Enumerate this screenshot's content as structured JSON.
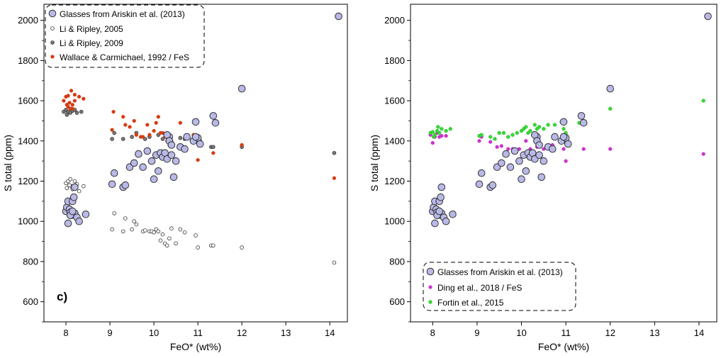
{
  "colors": {
    "ariskin_fill": "#b9b9e8",
    "li2005_fill": "#ffffff",
    "li2009_fill": "#7a7a7a",
    "wallace_fill": "#d63b12",
    "ding_fill": "#cc33cc",
    "fortin_fill": "#33dd33"
  },
  "chart_data": [
    {
      "type": "scatter",
      "panel_label": "c)",
      "xlabel": "FeO* (wt%)",
      "ylabel": "S total (ppm)",
      "xlim": [
        7.5,
        14.4
      ],
      "ylim": [
        500,
        2080
      ],
      "xticks": [
        8,
        9,
        10,
        11,
        12,
        13,
        14
      ],
      "yticks": [
        600,
        800,
        1000,
        1200,
        1400,
        1600,
        1800,
        2000
      ],
      "legend_position": "top-left",
      "series": [
        {
          "name": "Glasses from Ariskin et al. (2013)",
          "marker": "large-circle",
          "x": [
            8.0,
            8.02,
            8.05,
            8.08,
            8.1,
            8.12,
            8.15,
            8.18,
            8.2,
            8.25,
            8.3,
            8.45,
            8.05,
            8.1,
            8.15,
            8.2,
            9.05,
            9.1,
            9.3,
            9.35,
            9.45,
            9.55,
            9.65,
            9.75,
            9.85,
            9.95,
            10.0,
            10.05,
            10.1,
            10.15,
            10.2,
            10.25,
            10.3,
            10.35,
            10.4,
            10.45,
            10.5,
            10.3,
            10.35,
            10.4,
            10.6,
            10.7,
            10.75,
            10.9,
            10.95,
            11.0,
            11.05,
            10.95,
            11.35,
            11.4,
            12.0,
            14.2
          ],
          "y": [
            1050,
            1070,
            1100,
            1060,
            1045,
            1030,
            1100,
            1120,
            1040,
            1020,
            1000,
            1035,
            990,
            1030,
            1050,
            1170,
            1185,
            1240,
            1170,
            1180,
            1270,
            1290,
            1335,
            1270,
            1350,
            1300,
            1210,
            1330,
            1250,
            1340,
            1320,
            1340,
            1310,
            1420,
            1330,
            1220,
            1300,
            1430,
            1400,
            1380,
            1370,
            1360,
            1420,
            1400,
            1495,
            1415,
            1385,
            1420,
            1525,
            1490,
            1660,
            2020
          ]
        },
        {
          "name": "Li & Ripley, 2005",
          "marker": "small-open-circle",
          "x": [
            8.0,
            8.05,
            8.1,
            8.12,
            8.15,
            8.2,
            8.25,
            8.3,
            8.4,
            8.02,
            8.08,
            9.05,
            9.1,
            9.3,
            9.35,
            9.5,
            9.55,
            9.6,
            9.75,
            9.8,
            9.9,
            9.95,
            10.0,
            10.05,
            10.1,
            10.15,
            10.2,
            10.25,
            10.3,
            10.35,
            10.4,
            10.5,
            10.6,
            10.7,
            10.95,
            11.0,
            11.3,
            11.35,
            12.0,
            14.1
          ],
          "y": [
            1190,
            1200,
            1210,
            1175,
            1160,
            1200,
            1185,
            1150,
            1175,
            1165,
            1180,
            960,
            1040,
            950,
            1015,
            960,
            1000,
            985,
            950,
            955,
            950,
            950,
            945,
            960,
            950,
            905,
            935,
            890,
            880,
            915,
            965,
            890,
            960,
            945,
            930,
            870,
            880,
            880,
            870,
            795
          ]
        },
        {
          "name": "Li & Ripley, 2009",
          "marker": "small-grey-circle",
          "x": [
            7.95,
            8.0,
            8.02,
            8.05,
            8.1,
            8.12,
            8.15,
            8.2,
            8.25,
            8.35,
            9.05,
            9.1,
            9.3,
            9.5,
            9.6,
            9.8,
            9.9,
            10.1,
            10.2,
            10.3,
            10.35,
            10.6,
            10.7,
            10.9,
            11.05,
            11.3,
            11.35,
            12.0,
            14.1
          ],
          "y": [
            1545,
            1555,
            1530,
            1545,
            1540,
            1560,
            1550,
            1555,
            1540,
            1545,
            1410,
            1440,
            1410,
            1420,
            1440,
            1410,
            1420,
            1430,
            1410,
            1420,
            1415,
            1415,
            1410,
            1410,
            1400,
            1370,
            1370,
            1370,
            1340
          ]
        },
        {
          "name": "Wallace & Carmichael, 1992 / FeS",
          "marker": "small-red-circle",
          "x": [
            7.95,
            8.0,
            8.02,
            8.05,
            8.08,
            8.1,
            8.12,
            8.15,
            8.2,
            8.3,
            8.4,
            8.05,
            8.15,
            8.2,
            9.05,
            9.08,
            9.3,
            9.35,
            9.45,
            9.55,
            9.6,
            9.7,
            9.75,
            9.85,
            9.9,
            10.0,
            10.05,
            10.1,
            10.15,
            10.2,
            10.25,
            10.3,
            10.35,
            10.4,
            10.6,
            10.9,
            11.0,
            11.35,
            12.0,
            14.1
          ],
          "y": [
            1600,
            1620,
            1580,
            1625,
            1590,
            1560,
            1650,
            1580,
            1630,
            1620,
            1610,
            1570,
            1560,
            1600,
            1455,
            1545,
            1520,
            1480,
            1470,
            1500,
            1430,
            1420,
            1420,
            1480,
            1430,
            1450,
            1490,
            1520,
            1440,
            1440,
            1420,
            1400,
            1380,
            1400,
            1490,
            1430,
            1305,
            1340,
            1380,
            1215
          ]
        }
      ]
    },
    {
      "type": "scatter",
      "xlabel": "FeO* (wt%)",
      "ylabel": "S total (ppm)",
      "xlim": [
        7.5,
        14.4
      ],
      "ylim": [
        500,
        2080
      ],
      "xticks": [
        8,
        9,
        10,
        11,
        12,
        13,
        14
      ],
      "yticks": [
        600,
        800,
        1000,
        1200,
        1400,
        1600,
        1800,
        2000
      ],
      "legend_position": "bottom-left",
      "series": [
        {
          "name": "Glasses from Ariskin et al. (2013)",
          "marker": "large-circle",
          "x": [
            8.0,
            8.02,
            8.05,
            8.08,
            8.1,
            8.12,
            8.15,
            8.18,
            8.2,
            8.25,
            8.3,
            8.45,
            8.05,
            8.1,
            8.15,
            8.2,
            9.05,
            9.1,
            9.3,
            9.35,
            9.45,
            9.55,
            9.65,
            9.75,
            9.85,
            9.95,
            10.0,
            10.05,
            10.1,
            10.15,
            10.2,
            10.25,
            10.3,
            10.35,
            10.4,
            10.45,
            10.5,
            10.3,
            10.35,
            10.4,
            10.6,
            10.7,
            10.75,
            10.9,
            10.95,
            11.0,
            11.05,
            10.95,
            11.35,
            11.4,
            12.0,
            14.2
          ],
          "y": [
            1050,
            1070,
            1100,
            1060,
            1045,
            1030,
            1100,
            1120,
            1040,
            1020,
            1000,
            1035,
            990,
            1030,
            1050,
            1170,
            1185,
            1240,
            1170,
            1180,
            1270,
            1290,
            1335,
            1270,
            1350,
            1300,
            1210,
            1330,
            1250,
            1340,
            1320,
            1340,
            1310,
            1420,
            1330,
            1220,
            1300,
            1430,
            1400,
            1380,
            1370,
            1360,
            1420,
            1400,
            1495,
            1415,
            1385,
            1420,
            1525,
            1490,
            1660,
            2020
          ]
        },
        {
          "name": "Ding et al., 2018 / FeS",
          "marker": "small-magenta-circle",
          "x": [
            7.95,
            8.0,
            8.05,
            8.1,
            8.15,
            8.2,
            8.3,
            9.05,
            9.1,
            9.3,
            9.45,
            9.55,
            9.7,
            9.8,
            9.95,
            10.1,
            10.2,
            10.35,
            10.5,
            10.7,
            10.95,
            11.0,
            11.4,
            12.0,
            14.1
          ],
          "y": [
            1430,
            1390,
            1420,
            1440,
            1420,
            1425,
            1425,
            1400,
            1420,
            1395,
            1370,
            1375,
            1360,
            1360,
            1360,
            1400,
            1360,
            1370,
            1360,
            1380,
            1360,
            1300,
            1360,
            1360,
            1335
          ]
        },
        {
          "name": "Fortin et al., 2015",
          "marker": "small-green-circle",
          "x": [
            7.95,
            8.0,
            8.02,
            8.05,
            8.1,
            8.12,
            8.15,
            8.2,
            8.3,
            8.4,
            9.05,
            9.1,
            9.3,
            9.4,
            9.5,
            9.6,
            9.7,
            9.8,
            9.9,
            10.0,
            10.05,
            10.1,
            10.15,
            10.2,
            10.3,
            10.35,
            10.4,
            10.5,
            10.6,
            10.75,
            10.9,
            10.95,
            11.0,
            11.3,
            11.4,
            12.0,
            14.1
          ],
          "y": [
            1440,
            1445,
            1420,
            1430,
            1450,
            1470,
            1440,
            1460,
            1450,
            1460,
            1425,
            1430,
            1420,
            1410,
            1440,
            1440,
            1420,
            1430,
            1440,
            1450,
            1460,
            1470,
            1440,
            1450,
            1480,
            1460,
            1470,
            1460,
            1480,
            1480,
            1495,
            1460,
            1440,
            1490,
            1500,
            1560,
            1600
          ]
        }
      ]
    }
  ]
}
